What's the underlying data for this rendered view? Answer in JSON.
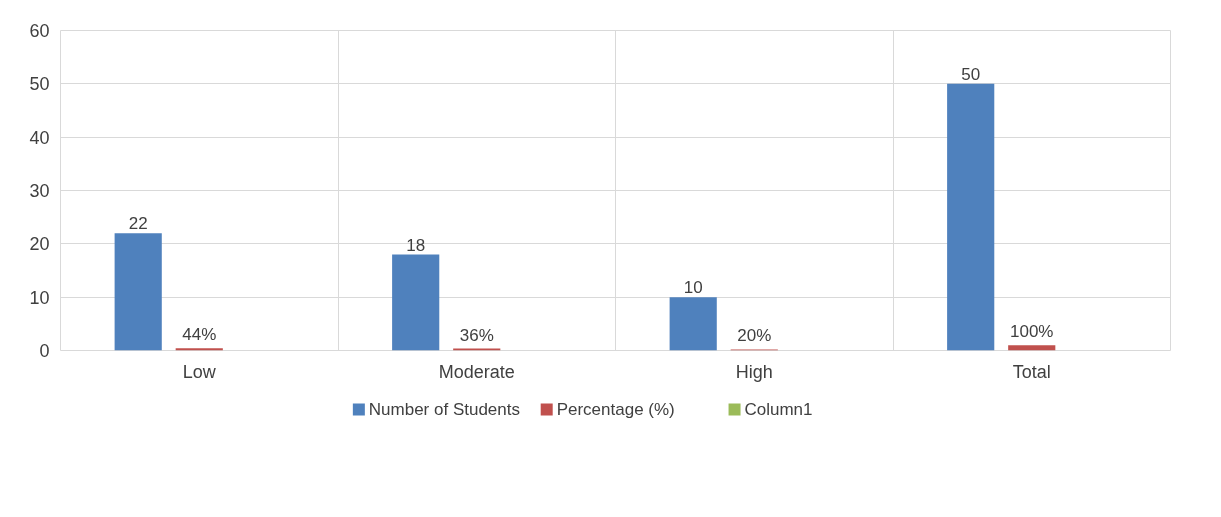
{
  "chart_data": {
    "type": "bar",
    "categories": [
      "Low",
      "Moderate",
      "High",
      "Total"
    ],
    "series": [
      {
        "name": "Number of Students",
        "color": "#4f81bd",
        "values": [
          22,
          18,
          10,
          50
        ],
        "value_labels": [
          "22",
          "18",
          "10",
          "50"
        ]
      },
      {
        "name": "Percentage (%)",
        "color": "#c0504d",
        "values": [
          0.44,
          0.36,
          0.2,
          1
        ],
        "value_labels": [
          "44%",
          "36%",
          "20%",
          "100%"
        ]
      },
      {
        "name": "Column1",
        "color": "#9bbb59",
        "values": [
          null,
          null,
          null,
          null
        ]
      }
    ],
    "ylim": [
      0,
      60
    ],
    "yticks": [
      0,
      10,
      20,
      30,
      40,
      50,
      60
    ],
    "grid": true,
    "legend": "bottom"
  }
}
